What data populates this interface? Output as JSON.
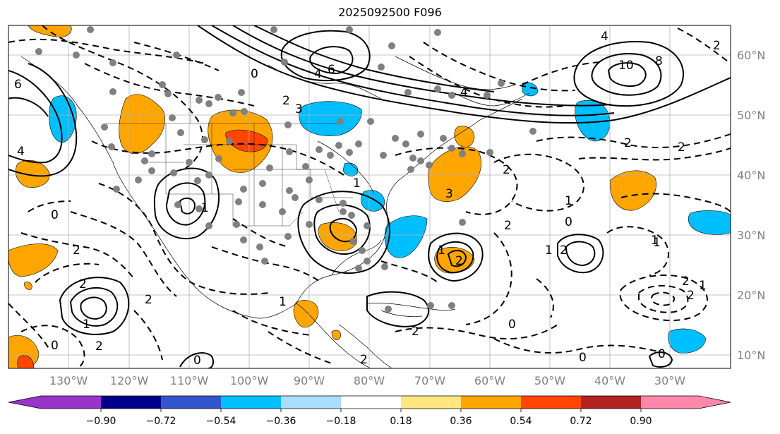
{
  "title": "2025092500 F096",
  "map": {
    "lon_labels": [
      "130°W",
      "120°W",
      "110°W",
      "100°W",
      "90°W",
      "80°W",
      "70°W",
      "60°W",
      "50°W",
      "40°W",
      "30°W"
    ],
    "lat_labels": [
      "60°N",
      "50°N",
      "40°N",
      "30°N",
      "20°N",
      "10°N"
    ],
    "contour_labels": [
      "6",
      "4",
      "4",
      "6",
      "10",
      "8",
      "0",
      "4",
      "4",
      "2",
      "3",
      "2",
      "2",
      "2",
      "0",
      "1",
      "1",
      "1",
      "2",
      "2",
      "0",
      "3",
      "2",
      "1",
      "1",
      "2",
      "2",
      "2",
      "1",
      "1",
      "0",
      "2",
      "2",
      "1",
      "2",
      "1",
      "1",
      "0",
      "2",
      "2",
      "0",
      "0",
      "0",
      "2"
    ],
    "gridline_color": "#b0b0b0",
    "label_color": "#7f7f7f",
    "station_marker_color": "#808080"
  },
  "colorbar": {
    "ticks": [
      "−0.90",
      "−0.72",
      "−0.54",
      "−0.36",
      "−0.18",
      "0.18",
      "0.36",
      "0.54",
      "0.72",
      "0.90"
    ],
    "colors": [
      "#9933cc",
      "#00008b",
      "#3355cc",
      "#00bfff",
      "#aaddff",
      "#ffffff",
      "#ffe680",
      "#ffa500",
      "#ff4500",
      "#b22222",
      "#ff88aa"
    ]
  }
}
